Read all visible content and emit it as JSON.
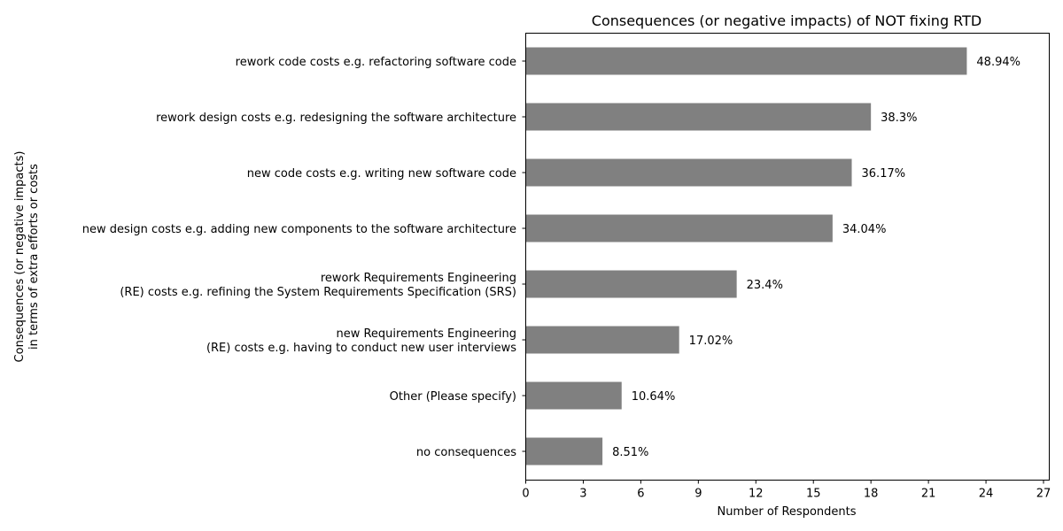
{
  "chart_data": {
    "type": "bar",
    "orientation": "horizontal",
    "title": "Consequences (or negative impacts) of NOT fixing RTD",
    "xlabel": "Number of Respondents",
    "ylabel": [
      "Consequences (or negative impacts)",
      "in terms of extra efforts or costs"
    ],
    "xlim": [
      0,
      27.3
    ],
    "xticks": [
      0,
      3,
      6,
      9,
      12,
      15,
      18,
      21,
      24,
      27
    ],
    "bar_color": "#808080",
    "grid": false,
    "categories": [
      [
        "rework code costs e.g. refactoring software code"
      ],
      [
        "rework design costs e.g. redesigning the software architecture"
      ],
      [
        "new code costs e.g. writing new software code"
      ],
      [
        "new design costs e.g. adding new components to the software architecture"
      ],
      [
        "rework Requirements Engineering",
        "(RE) costs e.g. refining the System Requirements Specification (SRS)"
      ],
      [
        "new Requirements Engineering",
        "(RE) costs e.g. having to conduct new user interviews"
      ],
      [
        "Other (Please specify)"
      ],
      [
        "no consequences"
      ]
    ],
    "values": [
      23,
      18,
      17,
      16,
      11,
      8,
      5,
      4
    ],
    "data_labels": [
      "48.94%",
      "38.3%",
      "36.17%",
      "34.04%",
      "23.4%",
      "17.02%",
      "10.64%",
      "8.51%"
    ]
  }
}
